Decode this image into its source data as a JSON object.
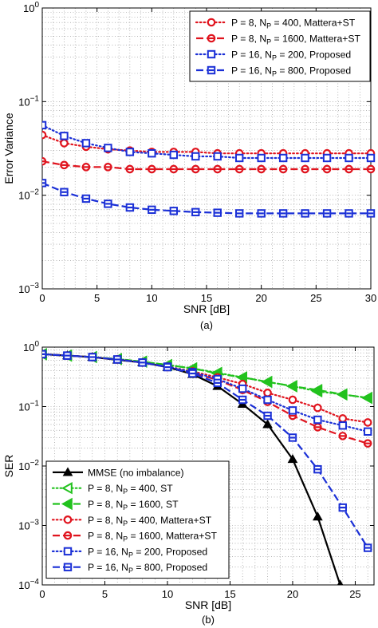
{
  "chart_data": [
    {
      "type": "line",
      "panel_label": "(a)",
      "xlabel": "SNR [dB]",
      "ylabel": "Error Variance",
      "xlim": [
        0,
        30
      ],
      "ylim": [
        0.001,
        1
      ],
      "yscale": "log",
      "grid": "major and minor, dotted",
      "legend_placement": "top-right",
      "x_ticks": [
        "0",
        "5",
        "10",
        "15",
        "20",
        "25",
        "30"
      ],
      "y_ticks": [
        {
          "base": "10",
          "exp": "0"
        },
        {
          "base": "10",
          "exp": "−1"
        },
        {
          "base": "10",
          "exp": "−2"
        },
        {
          "base": "10",
          "exp": "−3"
        }
      ],
      "series": [
        {
          "name": "P = 8, N_P = 400, Mattera+ST",
          "label": {
            "pre": "P = 8, N",
            "sub": "P",
            "post": " = 400, Mattera+ST"
          },
          "color": "#e0141e",
          "dash": "dotted",
          "marker": "circle",
          "x": [
            0,
            2,
            4,
            6,
            8,
            10,
            12,
            14,
            16,
            18,
            20,
            22,
            24,
            26,
            28,
            30
          ],
          "y": [
            0.044,
            0.036,
            0.033,
            0.031,
            0.03,
            0.029,
            0.029,
            0.029,
            0.028,
            0.028,
            0.028,
            0.028,
            0.028,
            0.028,
            0.028,
            0.028
          ]
        },
        {
          "name": "P = 8, N_P = 1600, Mattera+ST",
          "label": {
            "pre": "P = 8, N",
            "sub": "P",
            "post": " = 1600, Mattera+ST"
          },
          "color": "#e0141e",
          "dash": "dashed",
          "marker": "circle-bar",
          "x": [
            0,
            2,
            4,
            6,
            8,
            10,
            12,
            14,
            16,
            18,
            20,
            22,
            24,
            26,
            28,
            30
          ],
          "y": [
            0.023,
            0.021,
            0.02,
            0.02,
            0.019,
            0.019,
            0.019,
            0.019,
            0.019,
            0.019,
            0.019,
            0.019,
            0.019,
            0.019,
            0.019,
            0.019
          ]
        },
        {
          "name": "P = 16, N_P = 200, Proposed",
          "label": {
            "pre": "P = 16, N",
            "sub": "P",
            "post": " = 200, Proposed"
          },
          "color": "#1a2fd6",
          "dash": "dotted",
          "marker": "square",
          "x": [
            0,
            2,
            4,
            6,
            8,
            10,
            12,
            14,
            16,
            18,
            20,
            22,
            24,
            26,
            28,
            30
          ],
          "y": [
            0.056,
            0.043,
            0.036,
            0.032,
            0.029,
            0.028,
            0.027,
            0.026,
            0.026,
            0.025,
            0.025,
            0.025,
            0.025,
            0.025,
            0.025,
            0.025
          ]
        },
        {
          "name": "P = 16, N_P = 800, Proposed",
          "label": {
            "pre": "P = 16, N",
            "sub": "P",
            "post": " = 800, Proposed"
          },
          "color": "#1a2fd6",
          "dash": "dashed",
          "marker": "square-bar",
          "x": [
            0,
            2,
            4,
            6,
            8,
            10,
            12,
            14,
            16,
            18,
            20,
            22,
            24,
            26,
            28,
            30
          ],
          "y": [
            0.0135,
            0.0108,
            0.0092,
            0.0081,
            0.0074,
            0.007,
            0.0068,
            0.0066,
            0.0065,
            0.0064,
            0.0064,
            0.0064,
            0.0064,
            0.0064,
            0.0064,
            0.0064
          ]
        }
      ]
    },
    {
      "type": "line",
      "panel_label": "(b)",
      "xlabel": "SNR [dB]",
      "ylabel": "SER",
      "xlim": [
        0,
        26.5
      ],
      "ylim": [
        0.0001,
        1
      ],
      "yscale": "log",
      "grid": "major and minor, dotted",
      "legend_placement": "bottom-left",
      "x_ticks": [
        "0",
        "5",
        "10",
        "15",
        "20",
        "25"
      ],
      "y_ticks": [
        {
          "base": "10",
          "exp": "0"
        },
        {
          "base": "10",
          "exp": "−1"
        },
        {
          "base": "10",
          "exp": "−2"
        },
        {
          "base": "10",
          "exp": "−3"
        },
        {
          "base": "10",
          "exp": "−4"
        }
      ],
      "series": [
        {
          "name": "MMSE (no imbalance)",
          "label": {
            "pre": "MMSE (no imbalance)",
            "sub": "",
            "post": ""
          },
          "color": "#000000",
          "dash": "solid",
          "marker": "triangle-up",
          "x": [
            0,
            2,
            4,
            6,
            8,
            10,
            12,
            14,
            16,
            18,
            20,
            22,
            23.8
          ],
          "y": [
            0.76,
            0.72,
            0.68,
            0.61,
            0.55,
            0.46,
            0.35,
            0.22,
            0.11,
            0.05,
            0.013,
            0.0014,
            0.0001
          ]
        },
        {
          "name": "P = 8, N_P = 400, ST",
          "label": {
            "pre": "P = 8, N",
            "sub": "P",
            "post": " = 400, ST"
          },
          "color": "#22c21e",
          "dash": "dotted",
          "marker": "triangle-left",
          "x": [
            0,
            2,
            4,
            6,
            8,
            10,
            12,
            14,
            16,
            18,
            20,
            22,
            24,
            26
          ],
          "y": [
            0.76,
            0.72,
            0.68,
            0.63,
            0.57,
            0.5,
            0.44,
            0.37,
            0.31,
            0.26,
            0.22,
            0.18,
            0.16,
            0.14
          ]
        },
        {
          "name": "P = 8, N_P = 1600, ST",
          "label": {
            "pre": "P = 8, N",
            "sub": "P",
            "post": " = 1600, ST"
          },
          "color": "#22c21e",
          "dash": "dashed",
          "marker": "triangle-left-bar",
          "x": [
            0,
            2,
            4,
            6,
            8,
            10,
            12,
            14,
            16,
            18,
            20,
            22,
            24,
            26
          ],
          "y": [
            0.76,
            0.72,
            0.68,
            0.63,
            0.57,
            0.5,
            0.44,
            0.36,
            0.31,
            0.26,
            0.22,
            0.19,
            0.16,
            0.14
          ]
        },
        {
          "name": "P = 8, N_P = 400, Mattera+ST",
          "label": {
            "pre": "P = 8, N",
            "sub": "P",
            "post": " = 400, Mattera+ST"
          },
          "color": "#e0141e",
          "dash": "dotted",
          "marker": "circle",
          "x": [
            0,
            2,
            4,
            6,
            8,
            10,
            12,
            14,
            16,
            18,
            20,
            22,
            24,
            26
          ],
          "y": [
            0.76,
            0.72,
            0.68,
            0.62,
            0.55,
            0.47,
            0.39,
            0.31,
            0.24,
            0.17,
            0.13,
            0.095,
            0.063,
            0.054
          ]
        },
        {
          "name": "P = 8, N_P = 1600, Mattera+ST",
          "label": {
            "pre": "P = 8, N",
            "sub": "P",
            "post": " = 1600, Mattera+ST"
          },
          "color": "#e0141e",
          "dash": "dashed",
          "marker": "circle-bar",
          "x": [
            0,
            2,
            4,
            6,
            8,
            10,
            12,
            14,
            16,
            18,
            20,
            22,
            24,
            26
          ],
          "y": [
            0.76,
            0.72,
            0.68,
            0.62,
            0.55,
            0.46,
            0.37,
            0.28,
            0.19,
            0.12,
            0.07,
            0.045,
            0.032,
            0.024
          ]
        },
        {
          "name": "P = 16, N_P = 200, Proposed",
          "label": {
            "pre": "P = 16, N",
            "sub": "P",
            "post": " = 200, Proposed"
          },
          "color": "#1a2fd6",
          "dash": "dotted",
          "marker": "square",
          "x": [
            0,
            2,
            4,
            6,
            8,
            10,
            12,
            14,
            16,
            18,
            20,
            22,
            24,
            26
          ],
          "y": [
            0.76,
            0.72,
            0.68,
            0.62,
            0.55,
            0.47,
            0.38,
            0.29,
            0.2,
            0.13,
            0.086,
            0.06,
            0.048,
            0.038
          ]
        },
        {
          "name": "P = 16, N_P = 800, Proposed",
          "label": {
            "pre": "P = 16, N",
            "sub": "P",
            "post": " = 800, Proposed"
          },
          "color": "#1a2fd6",
          "dash": "dashed",
          "marker": "square-bar",
          "x": [
            0,
            2,
            4,
            6,
            8,
            10,
            12,
            14,
            16,
            18,
            20,
            22,
            24,
            26
          ],
          "y": [
            0.76,
            0.72,
            0.68,
            0.62,
            0.55,
            0.46,
            0.36,
            0.25,
            0.13,
            0.07,
            0.03,
            0.0088,
            0.002,
            0.00042
          ]
        }
      ]
    }
  ]
}
